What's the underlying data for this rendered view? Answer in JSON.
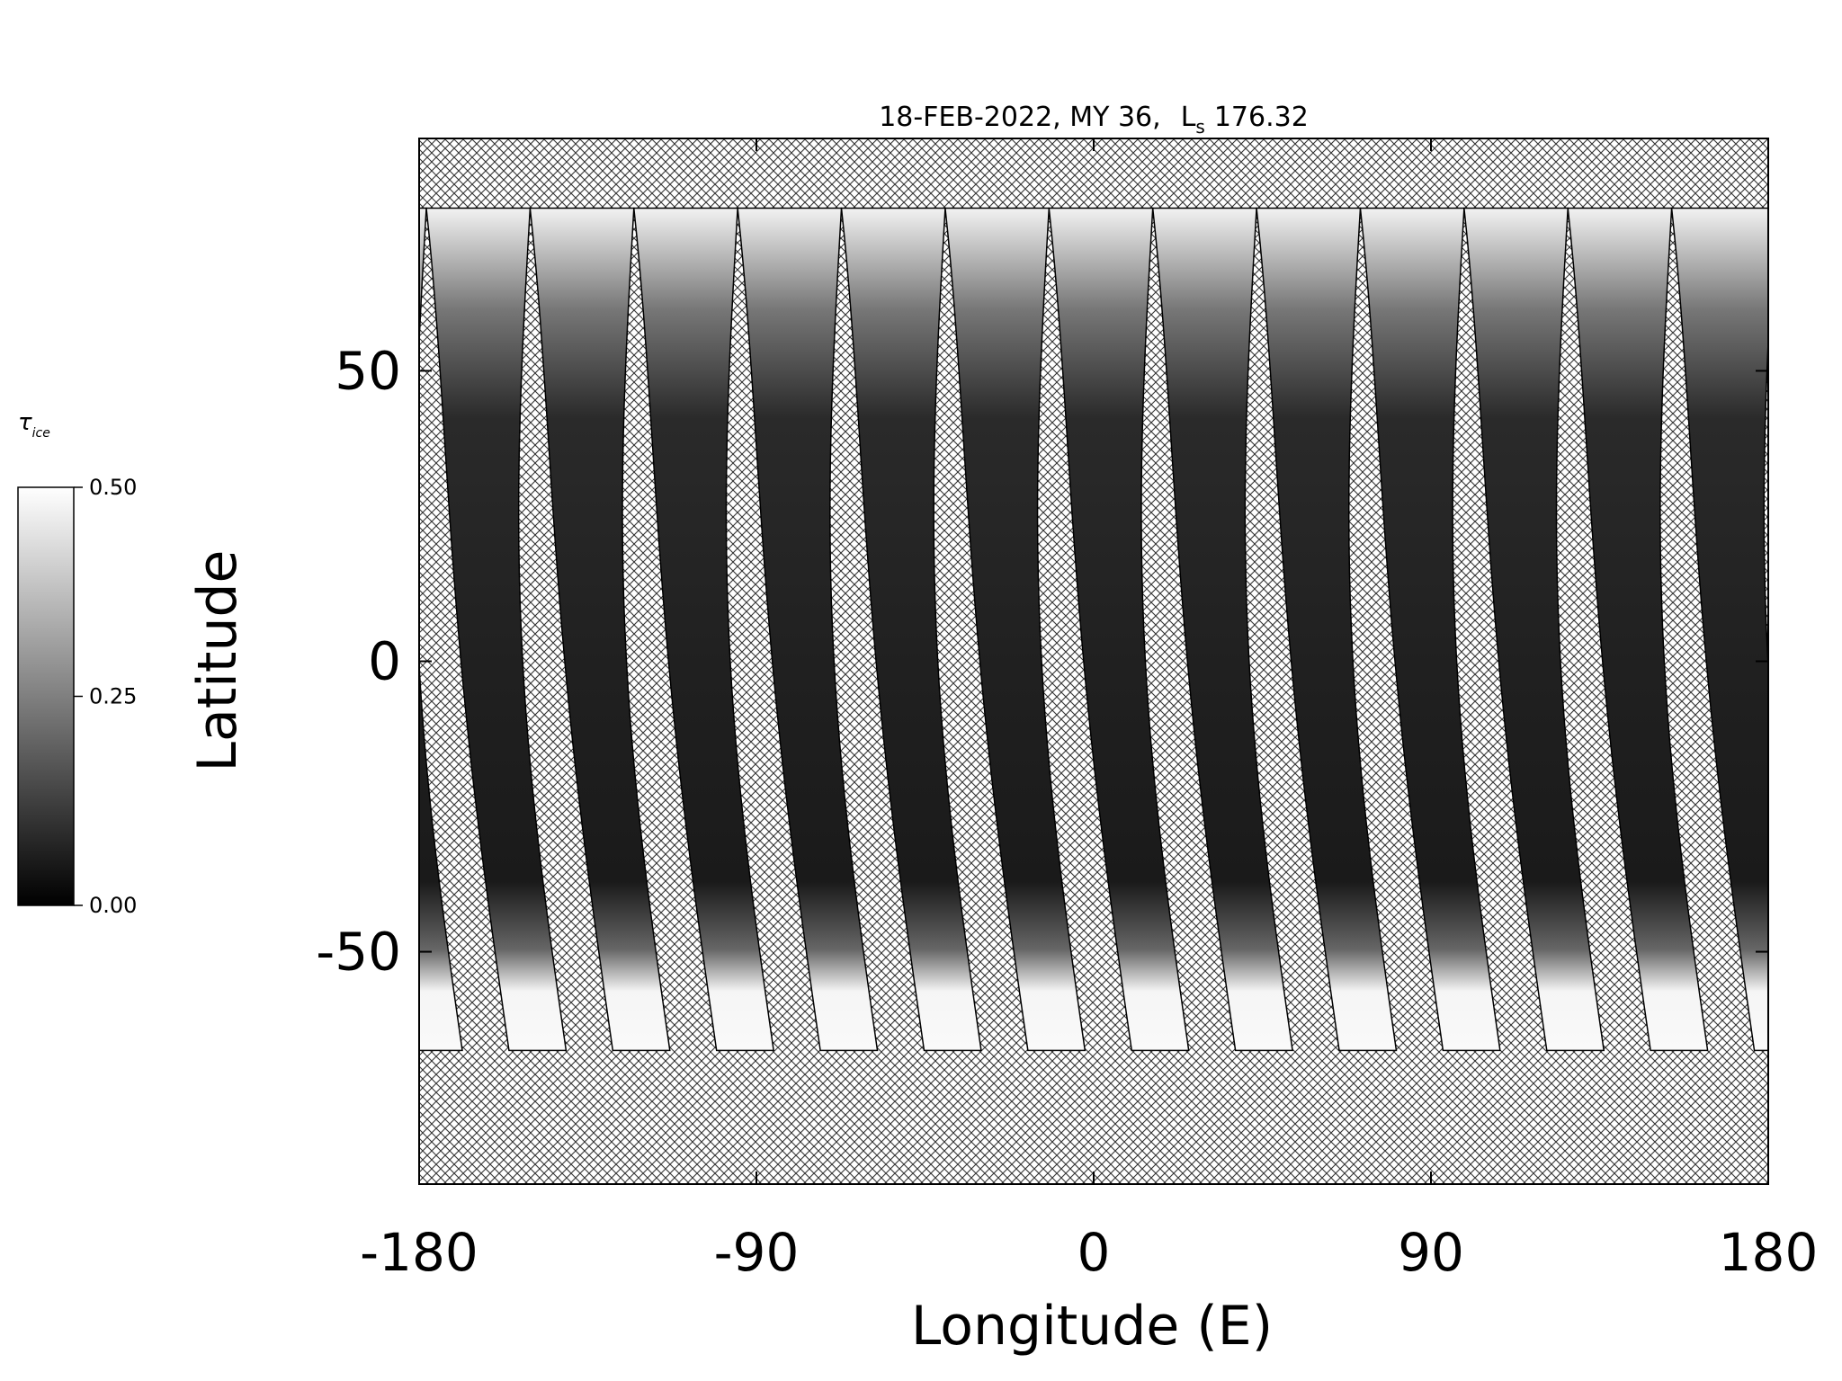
{
  "chart_data": {
    "type": "map",
    "title": {
      "date_my": "18-FEB-2022, MY 36,",
      "ls_symbol": "L",
      "ls_subscript": "s",
      "ls_value": "176.32"
    },
    "x_label": "Longitude (E)",
    "y_label": "Latitude",
    "xlim": [
      -180,
      180
    ],
    "xticks": [
      -180,
      -90,
      0,
      90,
      180
    ],
    "ylim": [
      -90,
      90
    ],
    "yticks": [
      -50,
      0,
      50
    ],
    "colorbar": {
      "label_symbol": "τ",
      "label_subscript": "ice",
      "lim": [
        0,
        0.5
      ],
      "ticks": [
        {
          "value": 0,
          "label": "0.00"
        },
        {
          "value": 0.25,
          "label": "0.25"
        },
        {
          "value": 0.5,
          "label": "0.50"
        }
      ],
      "colors": [
        "#000000",
        "#ffffff"
      ]
    }
  }
}
